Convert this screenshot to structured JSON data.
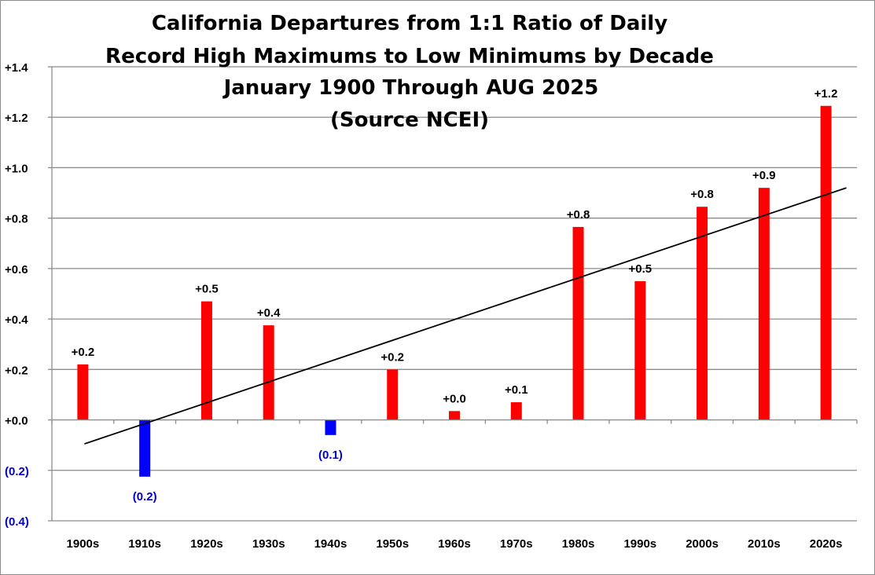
{
  "chart_data": {
    "type": "bar",
    "title": [
      "California Departures from 1:1 Ratio of Daily",
      "Record High Maximums to Low Minimums by Decade",
      "January 1900 Through AUG 2025",
      "(Source NCEI)"
    ],
    "categories": [
      "1900s",
      "1910s",
      "1920s",
      "1930s",
      "1940s",
      "1950s",
      "1960s",
      "1970s",
      "1980s",
      "1990s",
      "2000s",
      "2010s",
      "2020s"
    ],
    "values": [
      0.22,
      -0.225,
      0.47,
      0.375,
      -0.06,
      0.2,
      0.035,
      0.07,
      0.765,
      0.55,
      0.845,
      0.92,
      1.245
    ],
    "data_labels": [
      "+0.2",
      "(0.2)",
      "+0.5",
      "+0.4",
      "(0.1)",
      "+0.2",
      "+0.0",
      "+0.1",
      "+0.8",
      "+0.5",
      "+0.8",
      "+0.9",
      "+1.2"
    ],
    "ylim": [
      -0.4,
      1.4
    ],
    "yticks": [
      1.4,
      1.2,
      1.0,
      0.8,
      0.6,
      0.4,
      0.2,
      0.0,
      -0.2,
      -0.4
    ],
    "ytick_labels": [
      "+1.4",
      "+1.2",
      "+1.0",
      "+0.8",
      "+0.6",
      "+0.4",
      "+0.2",
      "+0.0",
      "(0.2)",
      "(0.4)"
    ],
    "trendline": {
      "type": "linear",
      "start": -0.095,
      "end": 0.92
    },
    "grid": true,
    "xlabel": "",
    "ylabel": "",
    "colors": {
      "positive": "#ff0000",
      "negative": "#0000ff",
      "negative_text": "#0000cc",
      "grid": "#8c8c8c",
      "trend": "#000000"
    }
  }
}
